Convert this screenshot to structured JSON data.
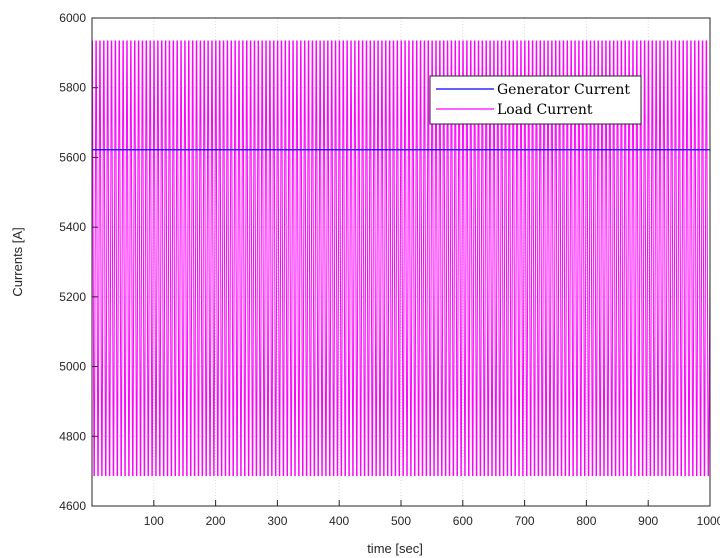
{
  "chart_data": {
    "type": "line",
    "title": "",
    "xlabel": "time [sec]",
    "ylabel": "Currents [A]",
    "xlim": [
      0,
      1000
    ],
    "ylim": [
      4600,
      6000
    ],
    "xticks": [
      100,
      200,
      300,
      400,
      500,
      600,
      700,
      800,
      900,
      1000
    ],
    "yticks": [
      4600,
      4800,
      5000,
      5200,
      5400,
      5600,
      5800,
      6000
    ],
    "grid": true,
    "legend_position": "top-right",
    "series": [
      {
        "name": "Generator Current",
        "color": "#0000ff",
        "x": [
          0,
          1000
        ],
        "y": [
          5622,
          5622
        ]
      },
      {
        "name": "Load Current",
        "color": "#ff00ff",
        "period": 6.25,
        "min": 4687,
        "max": 5934,
        "x_start": 0,
        "x_end": 1000
      }
    ]
  }
}
